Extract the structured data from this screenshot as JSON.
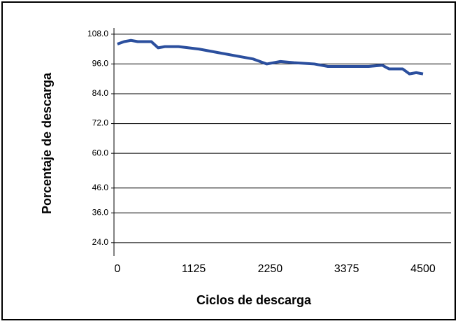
{
  "chart_data": {
    "type": "line",
    "xlabel": "Ciclos de descarga",
    "ylabel": "Porcentaje de descarga",
    "x": [
      0,
      100,
      200,
      300,
      500,
      600,
      700,
      900,
      1200,
      1500,
      1800,
      2000,
      2200,
      2400,
      2600,
      2900,
      3100,
      3400,
      3700,
      3900,
      4000,
      4200,
      4300,
      4400,
      4500
    ],
    "series": [
      {
        "color": "#2b4f9e",
        "values": [
          104,
          105,
          105.5,
          105,
          105,
          102.5,
          103,
          103,
          102,
          100.5,
          99,
          98,
          96,
          97,
          96.5,
          96,
          95,
          95,
          95,
          95.5,
          94,
          94,
          92,
          92.5,
          92
        ]
      }
    ],
    "xlim": [
      -50,
      4912
    ],
    "xticks": [
      0,
      1125,
      2250,
      3375,
      4500
    ],
    "ylim": [
      18.6,
      110.5
    ],
    "yticks": [
      {
        "value": 24,
        "label": "24.0"
      },
      {
        "value": 36,
        "label": "36.0"
      },
      {
        "value": 46,
        "label": "46.0"
      },
      {
        "value": 60,
        "label": "60.0"
      },
      {
        "value": 72,
        "label": "72.0"
      },
      {
        "value": 84,
        "label": "84.0"
      },
      {
        "value": 96,
        "label": "96.0"
      },
      {
        "value": 108,
        "label": "108.0"
      }
    ],
    "grid": true
  }
}
